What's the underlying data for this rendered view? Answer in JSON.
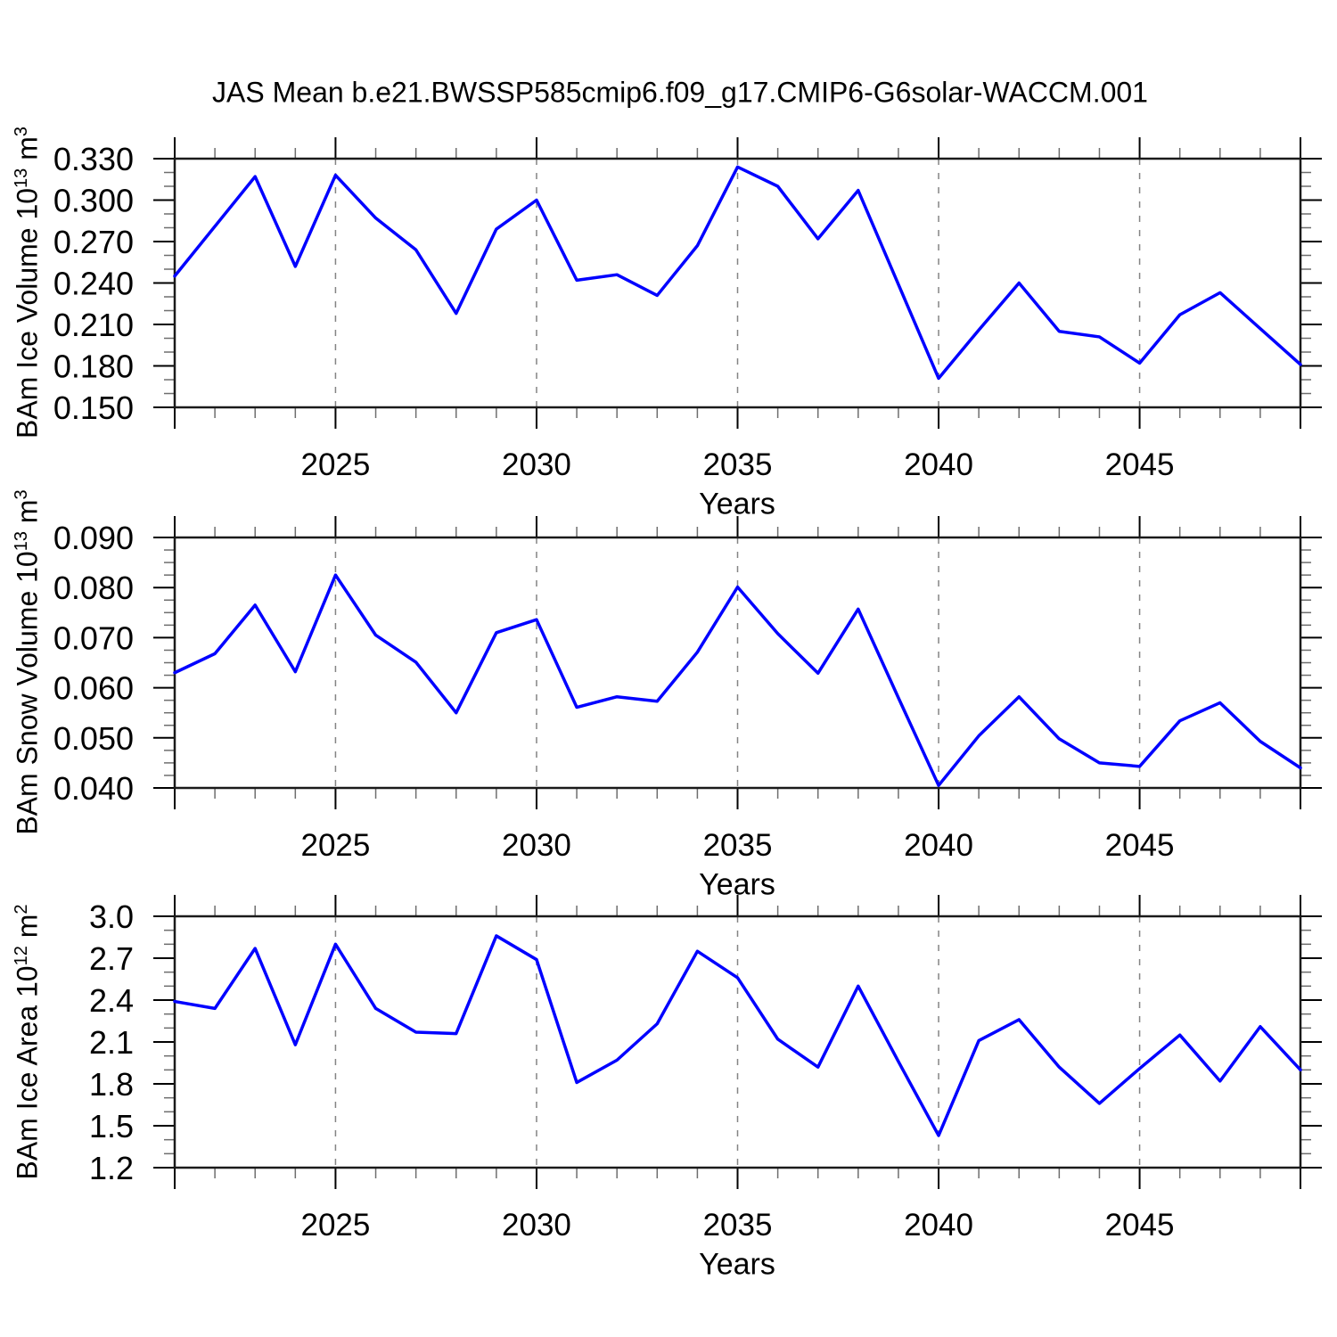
{
  "chart_data": {
    "type": "line",
    "title": "JAS Mean b.e21.BWSSP585cmip6.f09_g17.CMIP6-G6solar-WACCM.001",
    "line_color": "#0000ff",
    "grid": true,
    "legend": "none",
    "xlim": [
      2021,
      2049
    ],
    "x": [
      2021,
      2022,
      2023,
      2024,
      2025,
      2026,
      2027,
      2028,
      2029,
      2030,
      2031,
      2032,
      2033,
      2034,
      2035,
      2036,
      2037,
      2038,
      2039,
      2040,
      2041,
      2042,
      2043,
      2044,
      2045,
      2046,
      2047,
      2048,
      2049
    ],
    "xticks": [
      2025,
      2030,
      2035,
      2040,
      2045
    ],
    "xtick_labels": [
      "2025",
      "2030",
      "2035",
      "2040",
      "2045"
    ],
    "panels": [
      {
        "name": "bam-ice-volume",
        "ylabel_pre": "BAm Ice Volume 10",
        "ylabel_sup1": "13",
        "ylabel_mid": " m",
        "ylabel_sup2": "3",
        "xlabel": "Years",
        "ylim": [
          0.15,
          0.33
        ],
        "yticks": [
          0.15,
          0.18,
          0.21,
          0.24,
          0.27,
          0.3,
          0.33
        ],
        "ytick_labels": [
          "0.150",
          "0.180",
          "0.210",
          "0.240",
          "0.270",
          "0.300",
          "0.330"
        ],
        "yminor_step": 0.01,
        "values": [
          0.245,
          0.281,
          0.317,
          0.252,
          0.318,
          0.287,
          0.264,
          0.218,
          0.279,
          0.3,
          0.242,
          0.246,
          0.231,
          0.267,
          0.324,
          0.31,
          0.272,
          0.307,
          0.239,
          0.171,
          0.206,
          0.24,
          0.205,
          0.201,
          0.182,
          0.217,
          0.233,
          0.207,
          0.181
        ]
      },
      {
        "name": "bam-snow-volume",
        "ylabel_pre": "BAm Snow Volume 10",
        "ylabel_sup1": "13",
        "ylabel_mid": " m",
        "ylabel_sup2": "3",
        "xlabel": "Years",
        "ylim": [
          0.04,
          0.09
        ],
        "yticks": [
          0.04,
          0.05,
          0.06,
          0.07,
          0.08,
          0.09
        ],
        "ytick_labels": [
          "0.040",
          "0.050",
          "0.060",
          "0.070",
          "0.080",
          "0.090"
        ],
        "yminor_step": 0.0025,
        "values": [
          0.063,
          0.0668,
          0.0765,
          0.0632,
          0.0825,
          0.0705,
          0.0651,
          0.055,
          0.071,
          0.0736,
          0.0561,
          0.0582,
          0.0573,
          0.0671,
          0.0801,
          0.0708,
          0.0629,
          0.0757,
          0.058,
          0.0405,
          0.0504,
          0.0582,
          0.0498,
          0.045,
          0.0443,
          0.0534,
          0.057,
          0.0493,
          0.044
        ]
      },
      {
        "name": "bam-ice-area",
        "ylabel_pre": "BAm Ice Area 10",
        "ylabel_sup1": "12",
        "ylabel_mid": " m",
        "ylabel_sup2": "2",
        "xlabel": "Years",
        "ylim": [
          1.2,
          3.0
        ],
        "yticks": [
          1.2,
          1.5,
          1.8,
          2.1,
          2.4,
          2.7,
          3.0
        ],
        "ytick_labels": [
          "1.2",
          "1.5",
          "1.8",
          "2.1",
          "2.4",
          "2.7",
          "3.0"
        ],
        "yminor_step": 0.1,
        "values": [
          2.39,
          2.34,
          2.77,
          2.08,
          2.8,
          2.34,
          2.17,
          2.16,
          2.86,
          2.69,
          1.81,
          1.97,
          2.23,
          2.75,
          2.56,
          2.12,
          1.92,
          2.5,
          1.96,
          1.43,
          2.11,
          2.26,
          1.92,
          1.66,
          1.91,
          2.15,
          1.82,
          2.21,
          1.9
        ]
      }
    ]
  }
}
